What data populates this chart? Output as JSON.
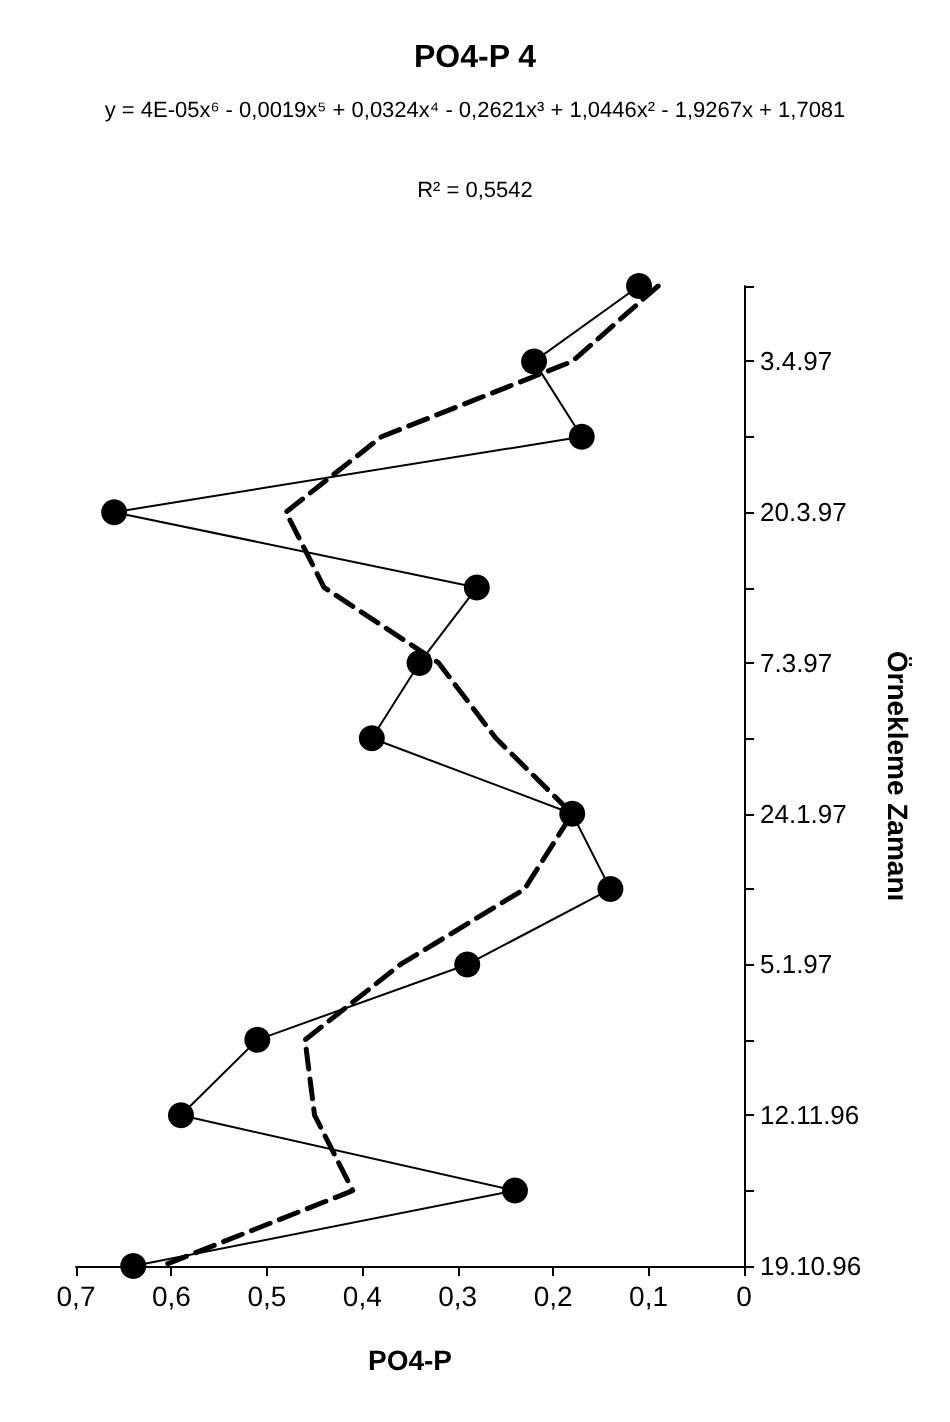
{
  "chart_data": {
    "type": "line",
    "orientation": "horizontal",
    "title": "PO4-P 4",
    "xlabel": "PO4-P",
    "ylabel": "Örnekleme Zamanı",
    "annotations": [
      "y = 4E-05x⁶ - 0,0019x⁵ + 0,0324x⁴ - 0,2621x³ + 1,0446x² - 1,9267x + 1,7081",
      "R² = 0,5542"
    ],
    "categories": [
      null,
      "3.4.97",
      null,
      "20.3.97",
      null,
      "7.3.97",
      null,
      "24.1.97",
      null,
      "5.1.97",
      null,
      "12.11.96",
      null,
      "19.10.96"
    ],
    "series": [
      {
        "color": "#000000",
        "marker": "circle",
        "line_style": "solid",
        "values": [
          0.11,
          0.22,
          0.17,
          0.66,
          0.28,
          0.34,
          0.39,
          0.18,
          0.14,
          0.29,
          0.51,
          0.59,
          0.24,
          0.64
        ]
      },
      {
        "color": "#000000",
        "marker": "none",
        "line_style": "dashed",
        "values": [
          0.09,
          0.18,
          0.38,
          0.48,
          0.44,
          0.32,
          0.26,
          0.18,
          0.23,
          0.36,
          0.46,
          0.45,
          0.41,
          0.61
        ]
      }
    ],
    "xlim": [
      0.7,
      0
    ],
    "xticks": [
      {
        "value": 0.7,
        "label": "0,7"
      },
      {
        "value": 0.6,
        "label": "0,6"
      },
      {
        "value": 0.5,
        "label": "0,5"
      },
      {
        "value": 0.4,
        "label": "0,4"
      },
      {
        "value": 0.3,
        "label": "0,3"
      },
      {
        "value": 0.2,
        "label": "0,2"
      },
      {
        "value": 0.1,
        "label": "0,1"
      },
      0
    ],
    "grid": false
  }
}
